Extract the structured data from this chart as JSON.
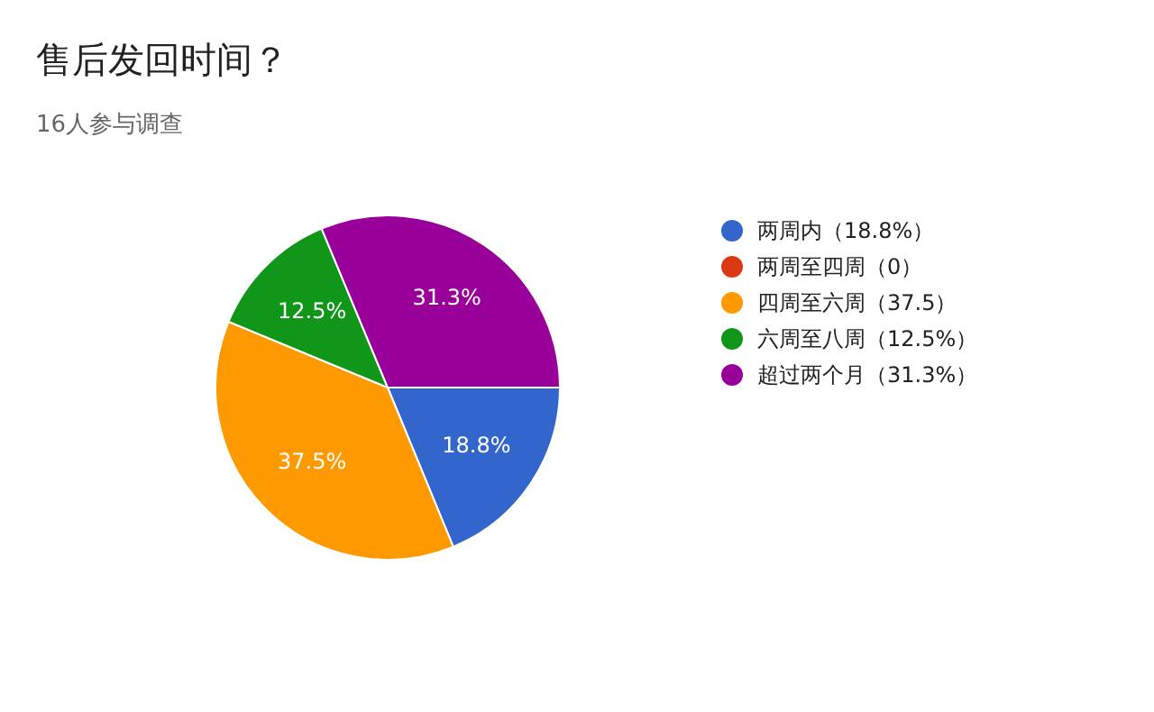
{
  "chart_data": {
    "type": "pie",
    "title": "售后发回时间？",
    "subtitle": "16人参与调查",
    "categories": [
      "两周内（18.8%）",
      "两周至四周（0）",
      "四周至六周（37.5）",
      "六周至八周（12.5%）",
      "超过两个月（31.3%）"
    ],
    "values": [
      18.8,
      0,
      37.5,
      12.5,
      31.3
    ],
    "colors": [
      "#3366cc",
      "#dc3912",
      "#ff9900",
      "#109618",
      "#990099"
    ],
    "value_labels": [
      "18.8%",
      null,
      "37.5%",
      "12.5%",
      "31.3%"
    ],
    "legend": "right"
  }
}
